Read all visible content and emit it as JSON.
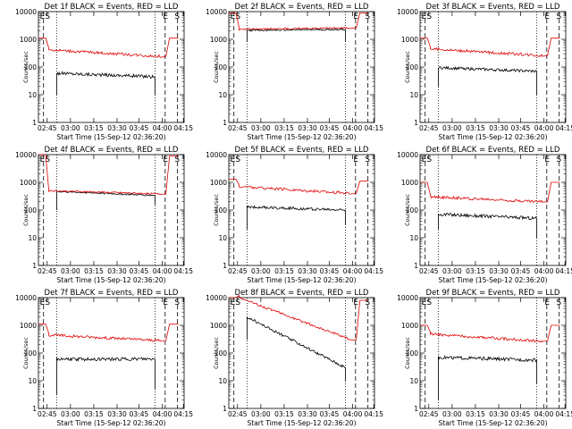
{
  "chart_data": [
    {
      "type": "line",
      "title": "Det 1f BLACK = Events, RED = LLD",
      "xlabel": "Start Time (15-Sep-12 02:36:20)",
      "ylabel": "Counts/sec",
      "yscale": "log",
      "ylim": [
        1,
        10000
      ],
      "x_tick_labels": [
        "02:45",
        "03:00",
        "03:15",
        "03:30",
        "03:45",
        "04:00",
        "04:15"
      ],
      "y_tick_labels": [
        "1",
        "10",
        "100",
        "1000",
        "10000"
      ],
      "markers": [
        "E",
        "S",
        "E",
        "S"
      ],
      "series": [
        {
          "color": "#000000",
          "start": 60,
          "end": 45,
          "wobble": 0.06,
          "drop_start": 10,
          "drop_end": 10
        },
        {
          "color": "#e00000",
          "start": 420,
          "end": 240,
          "wobble": 0.05,
          "rise_start": 1100,
          "rise_end": 1100
        }
      ]
    },
    {
      "type": "line",
      "title": "Det 2f BLACK = Events, RED = LLD",
      "xlabel": "Start Time (15-Sep-12 02:36:20)",
      "ylabel": "Counts/sec",
      "yscale": "log",
      "ylim": [
        1,
        10000
      ],
      "x_tick_labels": [
        "02:45",
        "03:00",
        "03:15",
        "03:30",
        "03:45",
        "04:00",
        "04:15"
      ],
      "y_tick_labels": [
        "1",
        "10",
        "100",
        "1000",
        "10000"
      ],
      "markers": [
        "E",
        "S",
        "E",
        "S"
      ],
      "series": [
        {
          "color": "#000000",
          "start": 2100,
          "end": 2300,
          "wobble": 0.03,
          "drop_start": 800,
          "drop_end": 800
        },
        {
          "color": "#e00000",
          "start": 2300,
          "end": 2600,
          "wobble": 0.03,
          "rise_start": 9000,
          "rise_end": 9000
        }
      ]
    },
    {
      "type": "line",
      "title": "Det 3f BLACK = Events, RED = LLD",
      "xlabel": "Start Time (15-Sep-12 02:36:20)",
      "ylabel": "Counts/sec",
      "yscale": "log",
      "ylim": [
        1,
        10000
      ],
      "x_tick_labels": [
        "02:45",
        "03:00",
        "03:15",
        "03:30",
        "03:45",
        "04:00",
        "04:15"
      ],
      "y_tick_labels": [
        "1",
        "10",
        "100",
        "1000",
        "10000"
      ],
      "markers": [
        "E",
        "S",
        "E",
        "S"
      ],
      "series": [
        {
          "color": "#000000",
          "start": 95,
          "end": 70,
          "wobble": 0.05,
          "drop_start": 20,
          "drop_end": 10
        },
        {
          "color": "#e00000",
          "start": 450,
          "end": 260,
          "wobble": 0.05,
          "rise_start": 1100,
          "rise_end": 1100
        }
      ]
    },
    {
      "type": "line",
      "title": "Det 4f BLACK = Events, RED = LLD",
      "xlabel": "Start Time (15-Sep-12 02:36:20)",
      "ylabel": "Counts/sec",
      "yscale": "log",
      "ylim": [
        1,
        10000
      ],
      "x_tick_labels": [
        "02:45",
        "03:00",
        "03:15",
        "03:30",
        "03:45",
        "04:00",
        "04:15"
      ],
      "y_tick_labels": [
        "1",
        "10",
        "100",
        "1000",
        "10000"
      ],
      "markers": [
        "E",
        "S",
        "E",
        "S"
      ],
      "series": [
        {
          "color": "#000000",
          "start": 470,
          "end": 340,
          "wobble": 0.03,
          "drop_start": 100,
          "drop_end": 150
        },
        {
          "color": "#e00000",
          "start": 500,
          "end": 380,
          "wobble": 0.03,
          "rise_start": 10000,
          "rise_end": 9000
        }
      ]
    },
    {
      "type": "line",
      "title": "Det 5f BLACK = Events, RED = LLD",
      "xlabel": "Start Time (15-Sep-12 02:36:20)",
      "ylabel": "Counts/sec",
      "yscale": "log",
      "ylim": [
        1,
        10000
      ],
      "x_tick_labels": [
        "02:45",
        "03:00",
        "03:15",
        "03:30",
        "03:45",
        "04:00",
        "04:15"
      ],
      "y_tick_labels": [
        "1",
        "10",
        "100",
        "1000",
        "10000"
      ],
      "markers": [
        "E",
        "S",
        "E",
        "S"
      ],
      "series": [
        {
          "color": "#000000",
          "start": 130,
          "end": 100,
          "wobble": 0.05,
          "drop_start": 20,
          "drop_end": 30
        },
        {
          "color": "#e00000",
          "start": 700,
          "end": 400,
          "wobble": 0.05,
          "rise_start": 1300,
          "rise_end": 1100
        }
      ]
    },
    {
      "type": "line",
      "title": "Det 6f BLACK = Events, RED = LLD",
      "xlabel": "Start Time (15-Sep-12 02:36:20)",
      "ylabel": "Counts/sec",
      "yscale": "log",
      "ylim": [
        1,
        10000
      ],
      "x_tick_labels": [
        "02:45",
        "03:00",
        "03:15",
        "03:30",
        "03:45",
        "04:00",
        "04:15"
      ],
      "y_tick_labels": [
        "1",
        "10",
        "100",
        "1000",
        "10000"
      ],
      "markers": [
        "E",
        "S",
        "E",
        "S"
      ],
      "series": [
        {
          "color": "#000000",
          "start": 70,
          "end": 50,
          "wobble": 0.06,
          "drop_start": 20,
          "drop_end": 10
        },
        {
          "color": "#e00000",
          "start": 300,
          "end": 200,
          "wobble": 0.05,
          "rise_start": 1000,
          "rise_end": 1000
        }
      ]
    },
    {
      "type": "line",
      "title": "Det 7f BLACK = Events, RED = LLD",
      "xlabel": "Start Time (15-Sep-12 02:36:20)",
      "ylabel": "Counts/sec",
      "yscale": "log",
      "ylim": [
        1,
        10000
      ],
      "x_tick_labels": [
        "02:45",
        "03:00",
        "03:15",
        "03:30",
        "03:45",
        "04:00",
        "04:15"
      ],
      "y_tick_labels": [
        "1",
        "10",
        "100",
        "1000",
        "10000"
      ],
      "markers": [
        "E",
        "S",
        "E",
        "S"
      ],
      "series": [
        {
          "color": "#000000",
          "start": 60,
          "end": 60,
          "wobble": 0.06,
          "drop_start": 3,
          "drop_end": 5
        },
        {
          "color": "#e00000",
          "start": 450,
          "end": 280,
          "wobble": 0.05,
          "rise_start": 1100,
          "rise_end": 1100
        }
      ]
    },
    {
      "type": "line",
      "title": "Det 8f BLACK = Events, RED = LLD",
      "xlabel": "Start Time (15-Sep-12 02:36:20)",
      "ylabel": "Counts/sec",
      "yscale": "log",
      "ylim": [
        1,
        10000
      ],
      "x_tick_labels": [
        "02:45",
        "03:00",
        "03:15",
        "03:30",
        "03:45",
        "04:00",
        "04:15"
      ],
      "y_tick_labels": [
        "1",
        "10",
        "100",
        "1000",
        "10000"
      ],
      "markers": [
        "E",
        "S",
        "E",
        "S"
      ],
      "series": [
        {
          "color": "#000000",
          "start": 2000,
          "end": 30,
          "wobble": 0.05,
          "drop_start": 300,
          "drop_end": 10
        },
        {
          "color": "#e00000",
          "start": 10000,
          "end": 300,
          "wobble": 0.04,
          "rise_start": 10000,
          "rise_end": 8000
        }
      ]
    },
    {
      "type": "line",
      "title": "Det 9f BLACK = Events, RED = LLD",
      "xlabel": "Start Time (15-Sep-12 02:36:20)",
      "ylabel": "Counts/sec",
      "yscale": "log",
      "ylim": [
        1,
        10000
      ],
      "x_tick_labels": [
        "02:45",
        "03:00",
        "03:15",
        "03:30",
        "03:45",
        "04:00",
        "04:15"
      ],
      "y_tick_labels": [
        "1",
        "10",
        "100",
        "1000",
        "10000"
      ],
      "markers": [
        "E",
        "S",
        "E",
        "S"
      ],
      "series": [
        {
          "color": "#000000",
          "start": 70,
          "end": 55,
          "wobble": 0.06,
          "drop_start": 2,
          "drop_end": 8
        },
        {
          "color": "#e00000",
          "start": 480,
          "end": 270,
          "wobble": 0.05,
          "rise_start": 1000,
          "rise_end": 1000
        }
      ]
    }
  ]
}
